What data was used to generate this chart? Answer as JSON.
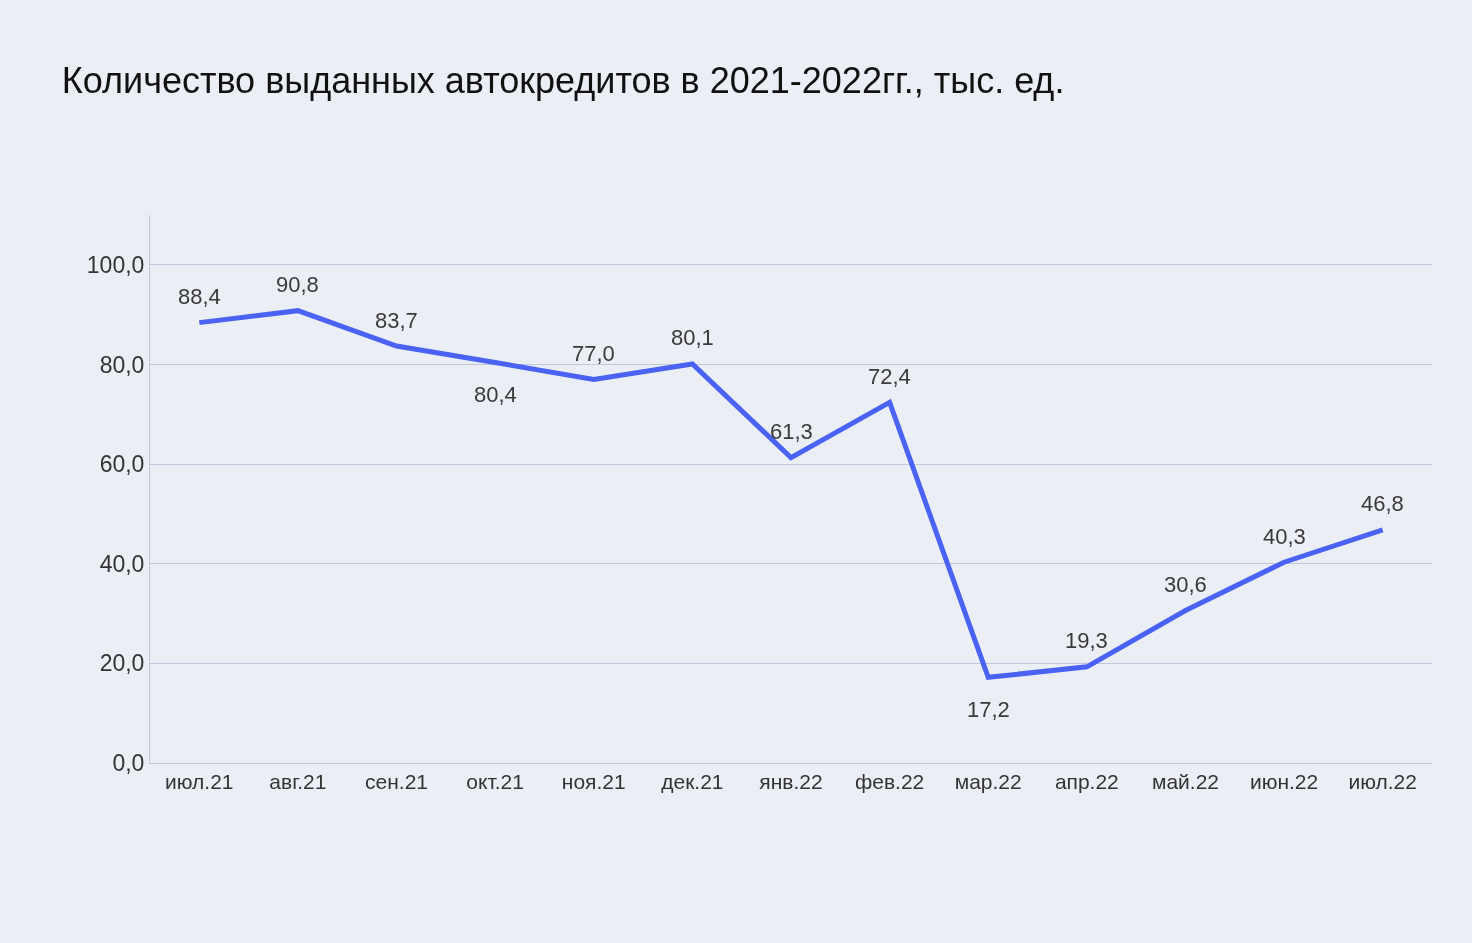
{
  "chart_data": {
    "type": "line",
    "title": "Количество выданных автокредитов в 2021-2022гг., тыс. ед.",
    "categories": [
      "июл.21",
      "авг.21",
      "сен.21",
      "окт.21",
      "ноя.21",
      "дек.21",
      "янв.22",
      "фев.22",
      "мар.22",
      "апр.22",
      "май.22",
      "июн.22",
      "июл.22"
    ],
    "series": [
      {
        "color": "#4a63f5",
        "values": [
          88.4,
          90.8,
          83.7,
          80.4,
          77.0,
          80.1,
          61.3,
          72.4,
          17.2,
          19.3,
          30.6,
          40.3,
          46.8
        ],
        "value_labels": [
          "88,4",
          "90,8",
          "83,7",
          "80,4",
          "77,0",
          "80,1",
          "61,3",
          "72,4",
          "17,2",
          "19,3",
          "30,6",
          "40,3",
          "46,8"
        ]
      }
    ],
    "ylim": [
      0,
      110
    ],
    "yticks": [
      {
        "value": 0,
        "label": "0,0"
      },
      {
        "value": 20,
        "label": "20,0"
      },
      {
        "value": 40,
        "label": "40,0"
      },
      {
        "value": 60,
        "label": "60,0"
      },
      {
        "value": 80,
        "label": "80,0"
      },
      {
        "value": 100,
        "label": "100,0"
      }
    ],
    "grid": "y",
    "legend": false,
    "marker": "none",
    "line_style": "solid"
  }
}
